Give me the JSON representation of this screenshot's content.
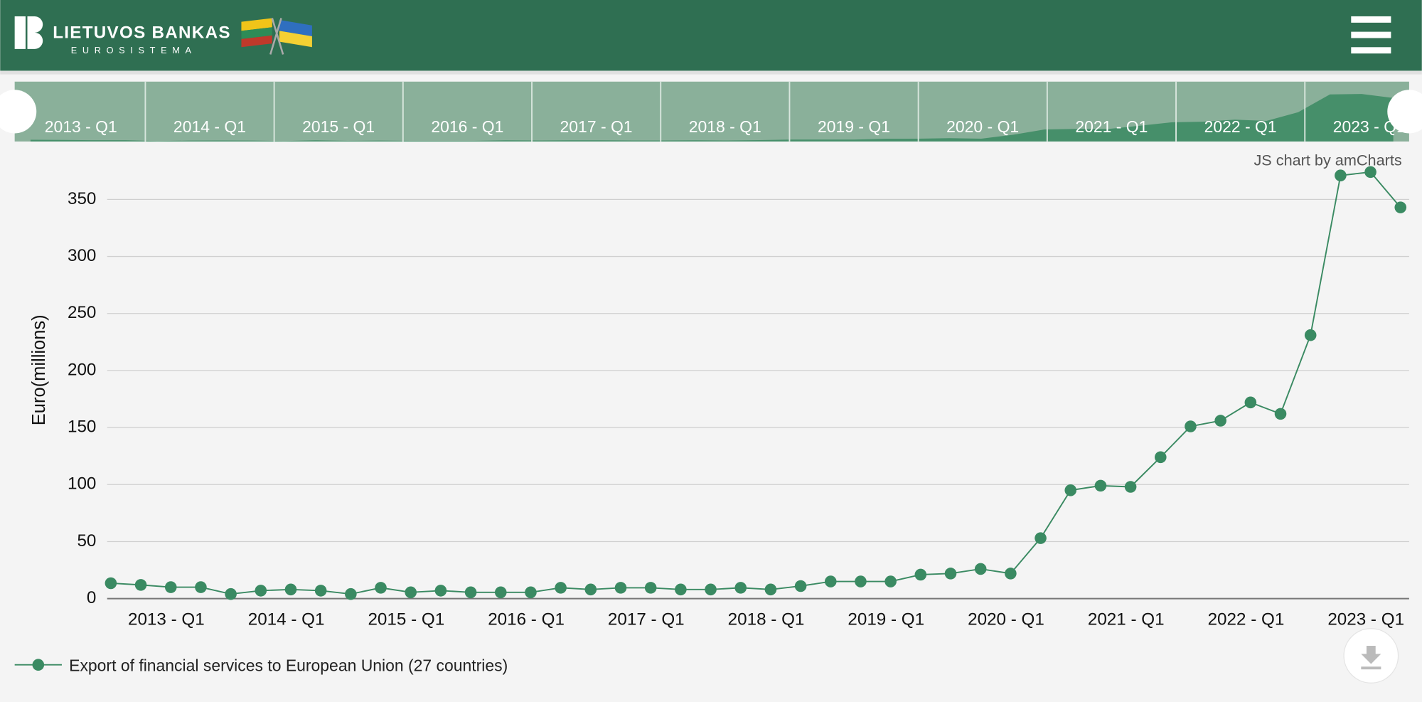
{
  "header": {
    "brand": "LIETUVOS BANKAS",
    "subbrand": "EUROSISTEMA"
  },
  "credit": "JS chart by amCharts",
  "scrollbar_labels": [
    "2013 - Q1",
    "2014 - Q1",
    "2015 - Q1",
    "2016 - Q1",
    "2017 - Q1",
    "2018 - Q1",
    "2019 - Q1",
    "2020 - Q1",
    "2021 - Q1",
    "2022 - Q1",
    "2023 - Q1"
  ],
  "chart_data": {
    "type": "line",
    "y_label": "Euro(millions)",
    "categories": [
      null,
      null,
      "2013 - Q1",
      null,
      null,
      null,
      "2014 - Q1",
      null,
      null,
      null,
      "2015 - Q1",
      null,
      null,
      null,
      "2016 - Q1",
      null,
      null,
      null,
      "2017 - Q1",
      null,
      null,
      null,
      "2018 - Q1",
      null,
      null,
      null,
      "2019 - Q1",
      null,
      null,
      null,
      "2020 - Q1",
      null,
      null,
      null,
      "2021 - Q1",
      null,
      null,
      null,
      "2022 - Q1",
      null,
      null,
      null,
      "2023 - Q1",
      null
    ],
    "series": [
      {
        "name": "Export of financial services to European Union (27 countries)",
        "color": "#3a8a62",
        "values": [
          13.5,
          12,
          10,
          10,
          4,
          7,
          8,
          7,
          4,
          9.5,
          5.5,
          7,
          5.5,
          5.5,
          5.5,
          9.5,
          8,
          9.5,
          9.5,
          8,
          8,
          9.5,
          8,
          11,
          15,
          15,
          15,
          21,
          22,
          26,
          22,
          53,
          95,
          99,
          98,
          124,
          151,
          156,
          172,
          162,
          231,
          371,
          374,
          343
        ]
      }
    ],
    "ylim": [
      0,
      400
    ],
    "yticks": [
      0,
      50,
      100,
      150,
      200,
      250,
      300,
      350
    ],
    "grid": true
  }
}
